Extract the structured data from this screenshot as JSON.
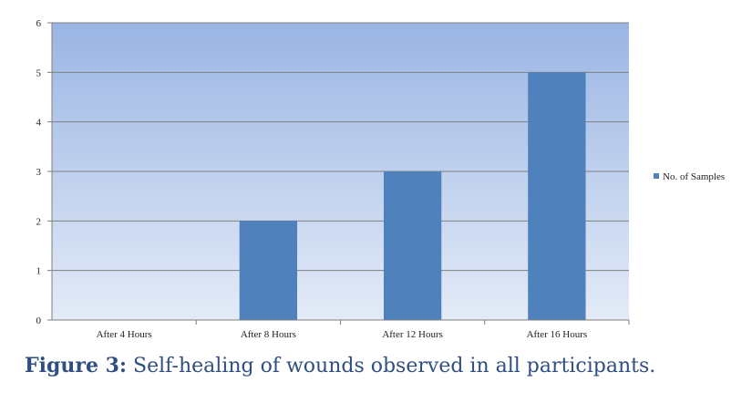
{
  "chart_data": {
    "type": "bar",
    "categories": [
      "After 4 Hours",
      "After 8 Hours",
      "After 12 Hours",
      "After 16 Hours"
    ],
    "series": [
      {
        "name": "No. of Samples",
        "values": [
          0,
          2,
          3,
          5
        ],
        "color": "#4f81bd"
      }
    ],
    "ylim": [
      0,
      6
    ],
    "yticks": [
      0,
      1,
      2,
      3,
      4,
      5,
      6
    ],
    "grid": true,
    "legend": "right",
    "background_gradient": [
      "#9ab5e4",
      "#e4ebf7"
    ]
  },
  "caption": {
    "label": "Figure 3:",
    "text": "Self-healing of wounds observed in all participants."
  }
}
